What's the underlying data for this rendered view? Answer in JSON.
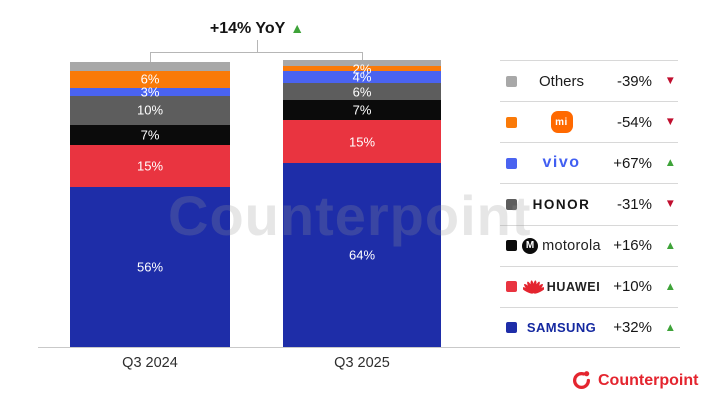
{
  "annotation": {
    "text": "+14% YoY",
    "trend": "up"
  },
  "watermark": "Counterpoint",
  "footer": {
    "brand": "Counterpoint"
  },
  "chart_data": {
    "type": "bar",
    "subtype": "stacked-100-percent",
    "title": "+14% YoY",
    "unit": "% share of shipments",
    "categories": [
      "Q3 2024",
      "Q3 2025"
    ],
    "legend_position": "right",
    "series_order": "top-to-bottom",
    "series": [
      {
        "name": "Others",
        "legend_label": "Others",
        "legend_style": "text",
        "color": "#a8a8a8",
        "values": [
          3,
          2
        ],
        "show_label": false,
        "yoy_change": "-39%",
        "trend": "down"
      },
      {
        "name": "Xiaomi",
        "legend_label": "mi",
        "legend_style": "mi",
        "color": "#fa7a08",
        "values": [
          6,
          2
        ],
        "show_label": true,
        "yoy_change": "-54%",
        "trend": "down"
      },
      {
        "name": "vivo",
        "legend_label": "vivo",
        "legend_style": "vivo",
        "color": "#4a63f0",
        "values": [
          3,
          4
        ],
        "show_label": true,
        "yoy_change": "+67%",
        "trend": "up"
      },
      {
        "name": "HONOR",
        "legend_label": "HONOR",
        "legend_style": "honor",
        "color": "#5d5d5d",
        "values": [
          10,
          6
        ],
        "show_label": true,
        "yoy_change": "-31%",
        "trend": "down"
      },
      {
        "name": "Motorola",
        "legend_label": "motorola",
        "legend_style": "motorola",
        "color": "#0b0b0b",
        "values": [
          7,
          7
        ],
        "show_label": true,
        "yoy_change": "+16%",
        "trend": "up"
      },
      {
        "name": "Huawei",
        "legend_label": "HUAWEI",
        "legend_style": "huawei",
        "color": "#e93440",
        "values": [
          15,
          15
        ],
        "show_label": true,
        "yoy_change": "+10%",
        "trend": "up"
      },
      {
        "name": "Samsung",
        "legend_label": "SAMSUNG",
        "legend_style": "samsung",
        "color": "#1e2da8",
        "values": [
          56,
          64
        ],
        "show_label": true,
        "yoy_change": "+32%",
        "trend": "up"
      }
    ]
  }
}
